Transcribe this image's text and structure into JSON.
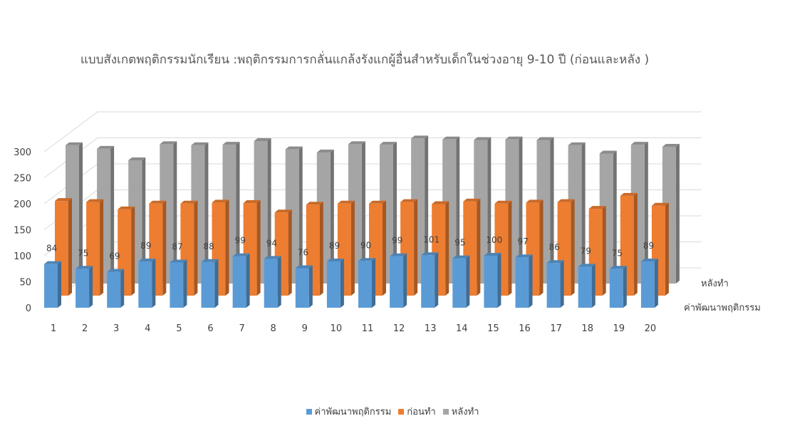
{
  "chart_data": {
    "type": "bar",
    "title": "แบบสังเกตพฤติกรรมนักเรียน :พฤติกรรมการกลั่นแกล้งรังแกผู้อื่นสำหรับเด็กในช่วงอายุ 9-10 ปี   (ก่อนและหลัง )",
    "categories": [
      "1",
      "2",
      "3",
      "4",
      "5",
      "6",
      "7",
      "8",
      "9",
      "10",
      "11",
      "12",
      "13",
      "14",
      "15",
      "16",
      "17",
      "18",
      "19",
      "20"
    ],
    "series": [
      {
        "name": "ค่าพัฒนาพฤติกรรม",
        "color": "#5b9bd5",
        "values": [
          84,
          75,
          69,
          89,
          87,
          88,
          99,
          94,
          76,
          89,
          90,
          99,
          101,
          95,
          100,
          97,
          86,
          79,
          75,
          89
        ]
      },
      {
        "name": "ก่อนทำ",
        "color": "#ed7d31",
        "values": [
          182,
          180,
          166,
          177,
          177,
          179,
          178,
          160,
          175,
          177,
          177,
          180,
          176,
          181,
          177,
          179,
          180,
          167,
          192,
          173
        ]
      },
      {
        "name": "หลังทำ",
        "color": "#a5a5a5",
        "values": [
          266,
          259,
          237,
          268,
          266,
          267,
          274,
          258,
          252,
          268,
          267,
          279,
          277,
          276,
          277,
          276,
          266,
          250,
          267,
          263
        ]
      }
    ],
    "yticks": [
      "0",
      "50",
      "100",
      "150",
      "200",
      "250",
      "300"
    ],
    "ylim": [
      0,
      300
    ],
    "depth_labels": [
      "หลังทำ",
      "ค่าพัฒนาพฤติกรรม"
    ],
    "gridlines": true,
    "legend_position": "bottom"
  }
}
